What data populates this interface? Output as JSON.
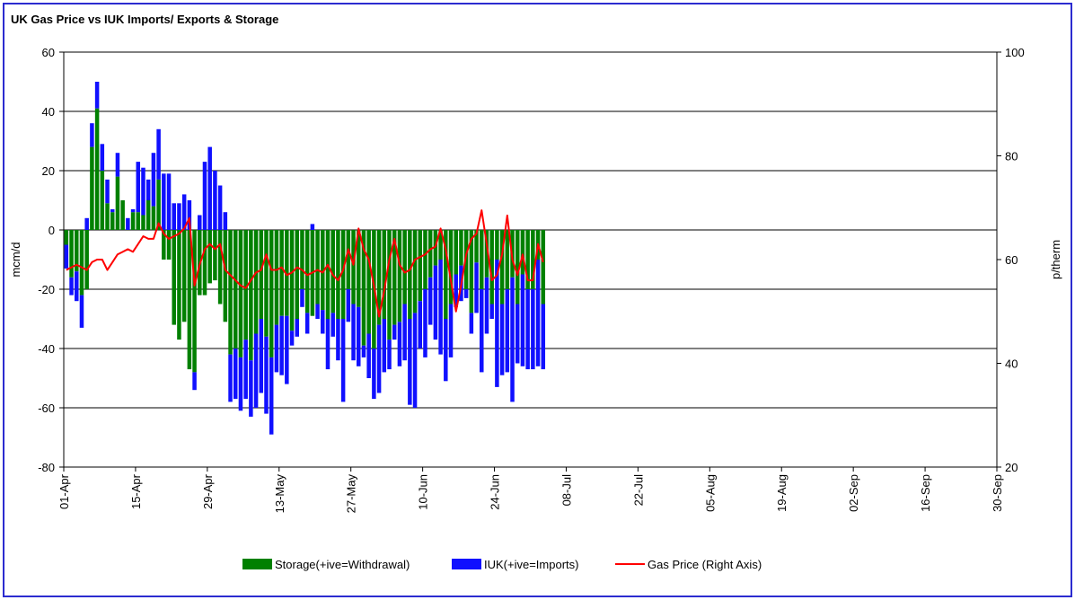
{
  "chart_data": {
    "type": "bar",
    "stacked": true,
    "title": "UK Gas Price vs IUK Imports/ Exports & Storage",
    "y_label": "mcm/d",
    "y2_label": "p/therm",
    "x": [
      "01-Apr",
      "02-Apr",
      "03-Apr",
      "04-Apr",
      "05-Apr",
      "06-Apr",
      "07-Apr",
      "08-Apr",
      "09-Apr",
      "10-Apr",
      "11-Apr",
      "12-Apr",
      "13-Apr",
      "14-Apr",
      "15-Apr",
      "16-Apr",
      "17-Apr",
      "18-Apr",
      "19-Apr",
      "20-Apr",
      "21-Apr",
      "22-Apr",
      "23-Apr",
      "24-Apr",
      "25-Apr",
      "26-Apr",
      "27-Apr",
      "28-Apr",
      "29-Apr",
      "30-Apr",
      "01-May",
      "02-May",
      "03-May",
      "04-May",
      "05-May",
      "06-May",
      "07-May",
      "08-May",
      "09-May",
      "10-May",
      "11-May",
      "12-May",
      "13-May",
      "14-May",
      "15-May",
      "16-May",
      "17-May",
      "18-May",
      "19-May",
      "20-May",
      "21-May",
      "22-May",
      "23-May",
      "24-May",
      "25-May",
      "26-May",
      "27-May",
      "28-May",
      "29-May",
      "30-May",
      "31-May",
      "01-Jun",
      "02-Jun",
      "03-Jun",
      "04-Jun",
      "05-Jun",
      "06-Jun",
      "07-Jun",
      "08-Jun",
      "09-Jun",
      "10-Jun",
      "11-Jun",
      "12-Jun",
      "13-Jun",
      "14-Jun",
      "15-Jun",
      "16-Jun",
      "17-Jun",
      "18-Jun",
      "19-Jun",
      "20-Jun",
      "21-Jun",
      "22-Jun",
      "23-Jun",
      "24-Jun",
      "25-Jun",
      "26-Jun",
      "27-Jun",
      "28-Jun",
      "29-Jun",
      "30-Jun",
      "01-Jul",
      "02-Jul",
      "03-Jul"
    ],
    "xlim": [
      "01-Apr",
      "30-Sep"
    ],
    "xticks": [
      "01-Apr",
      "15-Apr",
      "29-Apr",
      "13-May",
      "27-May",
      "10-Jun",
      "24-Jun",
      "08-Jul",
      "22-Jul",
      "05-Aug",
      "19-Aug",
      "02-Sep",
      "16-Sep",
      "30-Sep"
    ],
    "ylim": [
      -80,
      60
    ],
    "yticks": [
      -80,
      -60,
      -40,
      -20,
      0,
      20,
      40,
      60
    ],
    "y2lim": [
      20,
      100
    ],
    "y2ticks": [
      20,
      40,
      60,
      80,
      100
    ],
    "grid": true,
    "series": [
      {
        "name": "Storage(+ive=Withdrawal)",
        "color": "#008000",
        "values": [
          -5,
          -16,
          -14,
          -22,
          -20,
          28,
          41,
          20,
          9,
          6,
          18,
          10,
          0,
          6,
          6,
          5,
          10,
          8,
          17,
          -10,
          -10,
          -32,
          -37,
          -31,
          -47,
          -48,
          -22,
          -22,
          -18,
          -17,
          -25,
          -31,
          -42,
          -40,
          -43,
          -37,
          -44,
          -35,
          -30,
          -36,
          -43,
          -32,
          -29,
          -29,
          -34,
          -30,
          -20,
          -28,
          -29,
          -25,
          -27,
          -30,
          -28,
          -30,
          -30,
          -20,
          -25,
          -26,
          -39,
          -35,
          -40,
          -32,
          -30,
          -37,
          -32,
          -31,
          -25,
          -30,
          -28,
          -24,
          -20,
          -16,
          -12,
          -10,
          -30,
          -25,
          -15,
          -12,
          -20,
          -28,
          -11,
          -20,
          -16,
          -25,
          -10,
          -25,
          -20,
          -16,
          -25,
          -15,
          -20,
          -20,
          -10,
          -25
        ]
      },
      {
        "name": "IUK(+ive=Imports)",
        "color": "#1010ff",
        "values": [
          -8,
          -6,
          -10,
          -11,
          4,
          8,
          9,
          9,
          8,
          1,
          8,
          0,
          4,
          1,
          17,
          16,
          7,
          18,
          17,
          19,
          19,
          9,
          9,
          12,
          10,
          -6,
          5,
          23,
          28,
          20,
          15,
          6,
          -16,
          -17,
          -18,
          -20,
          -19,
          -25,
          -25,
          -26,
          -26,
          -16,
          -20,
          -23,
          -5,
          -6,
          -6,
          -7,
          2,
          -5,
          -8,
          -17,
          -8,
          -14,
          -28,
          -11,
          -19,
          -20,
          -4,
          -15,
          -17,
          -23,
          -18,
          -10,
          -5,
          -15,
          -19,
          -29,
          -32,
          -16,
          -23,
          -16,
          -25,
          -32,
          -21,
          -18,
          -11,
          -12,
          -3,
          -7,
          -17,
          -28,
          -19,
          -5,
          -43,
          -24,
          -28,
          -42,
          -20,
          -31,
          -27,
          -27,
          -36,
          -22
        ]
      },
      {
        "name": "Gas Price (Right Axis)",
        "color": "#ff0000",
        "type": "line",
        "axis": "y2",
        "values": [
          58,
          58.5,
          59,
          58.5,
          58,
          59.5,
          60,
          60,
          58,
          59.5,
          61,
          61.5,
          62,
          61.5,
          63,
          64.5,
          64,
          64,
          67,
          65,
          64,
          64.5,
          65,
          66,
          68,
          55,
          59,
          62,
          63,
          62,
          63,
          58,
          57,
          56,
          55,
          54.5,
          56,
          57.5,
          58,
          61,
          58,
          58,
          58.5,
          57,
          57.5,
          58.5,
          58,
          57,
          57.5,
          58,
          57.5,
          59,
          57,
          56,
          58,
          62,
          59,
          66,
          62,
          60,
          55,
          49,
          54,
          60,
          64,
          59,
          57.5,
          58,
          60,
          60.5,
          61,
          62,
          62.5,
          66,
          62,
          56,
          50,
          55,
          61,
          64,
          65,
          69.5,
          63,
          56,
          57,
          61,
          68.5,
          60,
          57,
          61,
          56,
          56,
          63,
          59.5
        ]
      }
    ]
  }
}
